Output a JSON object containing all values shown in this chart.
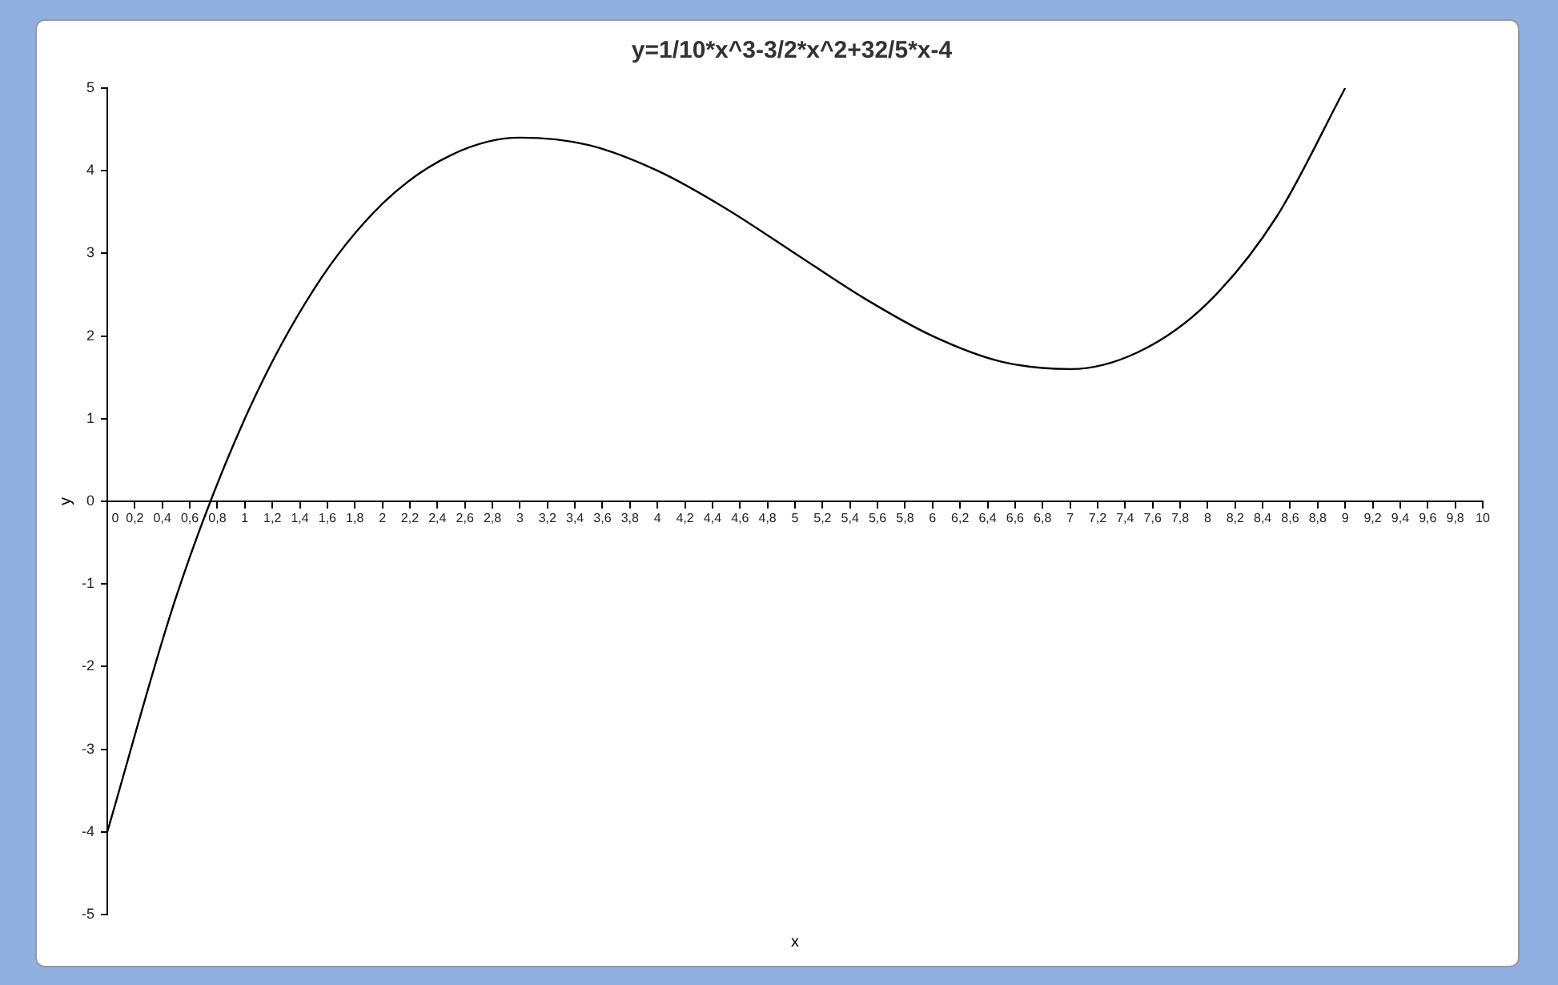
{
  "chart_data": {
    "type": "line",
    "title": "y=1/10*x^3-3/2*x^2+32/5*x-4",
    "xlabel": "x",
    "ylabel": "y",
    "x": [
      0,
      0.5,
      1,
      1.5,
      2,
      2.5,
      3,
      3.5,
      4,
      4.5,
      5,
      5.5,
      6,
      6.5,
      7,
      7.5,
      8,
      8.5,
      9
    ],
    "series": [
      {
        "color": "#000000",
        "values": [
          -4,
          -1.16,
          1,
          2.56,
          3.6,
          4.19,
          4.4,
          4.31,
          4,
          3.54,
          3,
          2.46,
          2,
          1.69,
          1.6,
          1.81,
          2.4,
          3.44,
          5
        ]
      }
    ],
    "xlim": [
      0,
      10
    ],
    "xticks": [
      0,
      {
        "value": 0.2,
        "label": "0,2"
      },
      {
        "value": 0.4,
        "label": "0,4"
      },
      {
        "value": 0.6,
        "label": "0,6"
      },
      {
        "value": 0.8,
        "label": "0,8"
      },
      1,
      {
        "value": 1.2,
        "label": "1,2"
      },
      {
        "value": 1.4,
        "label": "1,4"
      },
      {
        "value": 1.6,
        "label": "1,6"
      },
      {
        "value": 1.8,
        "label": "1,8"
      },
      2,
      {
        "value": 2.2,
        "label": "2,2"
      },
      {
        "value": 2.4,
        "label": "2,4"
      },
      {
        "value": 2.6,
        "label": "2,6"
      },
      {
        "value": 2.8,
        "label": "2,8"
      },
      3,
      {
        "value": 3.2,
        "label": "3,2"
      },
      {
        "value": 3.4,
        "label": "3,4"
      },
      {
        "value": 3.6,
        "label": "3,6"
      },
      {
        "value": 3.8,
        "label": "3,8"
      },
      4,
      {
        "value": 4.2,
        "label": "4,2"
      },
      {
        "value": 4.4,
        "label": "4,4"
      },
      {
        "value": 4.6,
        "label": "4,6"
      },
      {
        "value": 4.8,
        "label": "4,8"
      },
      5,
      {
        "value": 5.2,
        "label": "5,2"
      },
      {
        "value": 5.4,
        "label": "5,4"
      },
      {
        "value": 5.6,
        "label": "5,6"
      },
      {
        "value": 5.8,
        "label": "5,8"
      },
      6,
      {
        "value": 6.2,
        "label": "6,2"
      },
      {
        "value": 6.4,
        "label": "6,4"
      },
      {
        "value": 6.6,
        "label": "6,6"
      },
      {
        "value": 6.8,
        "label": "6,8"
      },
      7,
      {
        "value": 7.2,
        "label": "7,2"
      },
      {
        "value": 7.4,
        "label": "7,4"
      },
      {
        "value": 7.6,
        "label": "7,6"
      },
      {
        "value": 7.8,
        "label": "7,8"
      },
      8,
      {
        "value": 8.2,
        "label": "8,2"
      },
      {
        "value": 8.4,
        "label": "8,4"
      },
      {
        "value": 8.6,
        "label": "8,6"
      },
      {
        "value": 8.8,
        "label": "8,8"
      },
      9,
      {
        "value": 9.2,
        "label": "9,2"
      },
      {
        "value": 9.4,
        "label": "9,4"
      },
      {
        "value": 9.6,
        "label": "9,6"
      },
      {
        "value": 9.8,
        "label": "9,8"
      },
      10
    ],
    "ylim": [
      -5,
      5
    ],
    "yticks": [
      -5,
      -4,
      -3,
      -2,
      -1,
      0,
      1,
      2,
      3,
      4,
      5
    ],
    "grid": false,
    "legend": false,
    "marker": "none",
    "line_style": "solid"
  }
}
